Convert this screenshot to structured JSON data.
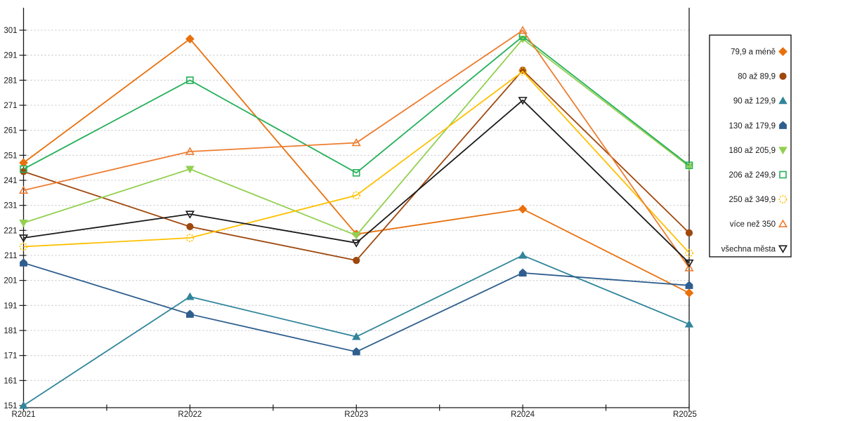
{
  "chart_data": {
    "type": "line",
    "title": "",
    "xlabel": "",
    "ylabel": "",
    "categories": [
      "R2021",
      "R2022",
      "R2023",
      "R2024",
      "R2025"
    ],
    "series": [
      {
        "name": "79,9 a méně",
        "color": "#E8710D",
        "marker": "diamond",
        "style": "solid",
        "values": [
          248,
          297.5,
          219.5,
          229.5,
          196
        ]
      },
      {
        "name": "80 až 89,9",
        "color": "#9E480E",
        "marker": "circle",
        "style": "solid",
        "values": [
          244.5,
          222.5,
          209,
          285,
          220
        ]
      },
      {
        "name": "90 až 129,9",
        "color": "#31859B",
        "marker": "triangle-up",
        "style": "solid",
        "values": [
          151,
          194.5,
          178.5,
          211,
          183.5
        ]
      },
      {
        "name": "130 až 179,9",
        "color": "#2E5E8E",
        "marker": "pentagon",
        "style": "solid",
        "values": [
          208,
          187.5,
          172.5,
          204,
          199
        ]
      },
      {
        "name": "180 až 205,9",
        "color": "#92D050",
        "marker": "triangle-down",
        "style": "solid",
        "values": [
          224,
          245.5,
          219,
          297.5,
          246.5
        ]
      },
      {
        "name": "206 až 249,9",
        "color": "#25B05A",
        "marker": "square",
        "style": "open",
        "values": [
          245.5,
          281,
          244,
          298.5,
          247
        ]
      },
      {
        "name": "250 až 349,9",
        "color": "#FFC000",
        "marker": "circle",
        "style": "open-dashed",
        "values": [
          214.5,
          218,
          235,
          284.5,
          212
        ]
      },
      {
        "name": "více než 350",
        "color": "#ED7D31",
        "marker": "triangle-up",
        "style": "open",
        "values": [
          237,
          252.5,
          256,
          300.9,
          206
        ]
      },
      {
        "name": "všechna města",
        "color": "#1A1A1A",
        "marker": "triangle-down",
        "style": "open",
        "values": [
          218,
          227.5,
          216,
          273,
          208
        ]
      }
    ],
    "ylim": [
      151,
      310
    ],
    "yticks": [
      151,
      161,
      171,
      181,
      191,
      201,
      211,
      221,
      231,
      241,
      251,
      261,
      271,
      281,
      291,
      301
    ],
    "grid": "horizontal-dashed",
    "legend_position": "right"
  },
  "colors": {
    "background": "#FFFFFF",
    "grid": "#C6C6C6",
    "axis": "#1A1A1A",
    "tick_label": "#1A1A1A",
    "legend_border": "#1A1A1A"
  }
}
